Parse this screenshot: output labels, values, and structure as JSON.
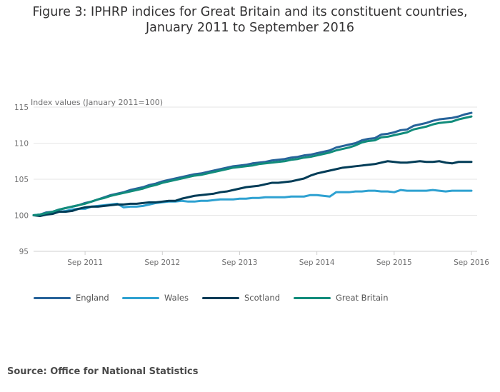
{
  "title_line1": "Figure 3: IPHRP indices for Great Britain and its constituent countries,",
  "title_line2": "January 2011 to September 2016",
  "source": "Source: Office for National Statistics",
  "chart_data": {
    "type": "line",
    "ylabel": "Index values (January 2011=100)",
    "ylim": [
      95,
      115
    ],
    "yticks": [
      95,
      100,
      105,
      110,
      115
    ],
    "xlim": [
      "2011-01",
      "2016-09"
    ],
    "xticks": [
      "Sep 2011",
      "Sep 2012",
      "Sep 2013",
      "Sep 2014",
      "Sep 2015",
      "Sep 2016"
    ],
    "grid": true,
    "legend_position": "bottom",
    "x": [
      "2011-01",
      "2011-02",
      "2011-03",
      "2011-04",
      "2011-05",
      "2011-06",
      "2011-07",
      "2011-08",
      "2011-09",
      "2011-10",
      "2011-11",
      "2011-12",
      "2012-01",
      "2012-02",
      "2012-03",
      "2012-04",
      "2012-05",
      "2012-06",
      "2012-07",
      "2012-08",
      "2012-09",
      "2012-10",
      "2012-11",
      "2012-12",
      "2013-01",
      "2013-02",
      "2013-03",
      "2013-04",
      "2013-05",
      "2013-06",
      "2013-07",
      "2013-08",
      "2013-09",
      "2013-10",
      "2013-11",
      "2013-12",
      "2014-01",
      "2014-02",
      "2014-03",
      "2014-04",
      "2014-05",
      "2014-06",
      "2014-07",
      "2014-08",
      "2014-09",
      "2014-10",
      "2014-11",
      "2014-12",
      "2015-01",
      "2015-02",
      "2015-03",
      "2015-04",
      "2015-05",
      "2015-06",
      "2015-07",
      "2015-08",
      "2015-09",
      "2015-10",
      "2015-11",
      "2015-12",
      "2016-01",
      "2016-02",
      "2016-03",
      "2016-04",
      "2016-05",
      "2016-06",
      "2016-07",
      "2016-08",
      "2016-09"
    ],
    "series": [
      {
        "name": "England",
        "color": "#27639a",
        "values": [
          100,
          100.1,
          100.4,
          100.5,
          100.8,
          101,
          101.2,
          101.4,
          101.7,
          101.9,
          102.2,
          102.5,
          102.8,
          103,
          103.2,
          103.5,
          103.7,
          103.9,
          104.2,
          104.4,
          104.7,
          104.9,
          105.1,
          105.3,
          105.5,
          105.7,
          105.8,
          106,
          106.2,
          106.4,
          106.6,
          106.8,
          106.9,
          107,
          107.2,
          107.3,
          107.4,
          107.6,
          107.7,
          107.8,
          108,
          108.1,
          108.3,
          108.4,
          108.6,
          108.8,
          109,
          109.4,
          109.6,
          109.8,
          110,
          110.4,
          110.6,
          110.7,
          111.2,
          111.3,
          111.5,
          111.8,
          111.9,
          112.4,
          112.6,
          112.8,
          113.1,
          113.3,
          113.4,
          113.5,
          113.7,
          114,
          114.2
        ]
      },
      {
        "name": "Wales",
        "color": "#2ea1d1",
        "values": [
          100,
          100.1,
          100.2,
          100.4,
          100.5,
          100.6,
          100.8,
          100.9,
          100.9,
          101.2,
          101.3,
          101.4,
          101.5,
          101.6,
          101.1,
          101.2,
          101.2,
          101.3,
          101.5,
          101.7,
          101.8,
          101.9,
          101.9,
          102,
          101.9,
          101.9,
          102,
          102,
          102.1,
          102.2,
          102.2,
          102.2,
          102.3,
          102.3,
          102.4,
          102.4,
          102.5,
          102.5,
          102.5,
          102.5,
          102.6,
          102.6,
          102.6,
          102.8,
          102.8,
          102.7,
          102.6,
          103.2,
          103.2,
          103.2,
          103.3,
          103.3,
          103.4,
          103.4,
          103.3,
          103.3,
          103.2,
          103.5,
          103.4,
          103.4,
          103.4,
          103.4,
          103.5,
          103.4,
          103.3,
          103.4,
          103.4,
          103.4,
          103.4
        ]
      },
      {
        "name": "Scotland",
        "color": "#003c57",
        "values": [
          100,
          99.9,
          100.1,
          100.2,
          100.5,
          100.5,
          100.6,
          100.9,
          101.1,
          101.2,
          101.2,
          101.3,
          101.4,
          101.5,
          101.5,
          101.6,
          101.6,
          101.7,
          101.8,
          101.8,
          101.9,
          102,
          102,
          102.3,
          102.5,
          102.7,
          102.8,
          102.9,
          103,
          103.2,
          103.3,
          103.5,
          103.7,
          103.9,
          104,
          104.1,
          104.3,
          104.5,
          104.5,
          104.6,
          104.7,
          104.9,
          105.1,
          105.5,
          105.8,
          106,
          106.2,
          106.4,
          106.6,
          106.7,
          106.8,
          106.9,
          107,
          107.1,
          107.3,
          107.5,
          107.4,
          107.3,
          107.3,
          107.4,
          107.5,
          107.4,
          107.4,
          107.5,
          107.3,
          107.2,
          107.4,
          107.4,
          107.4
        ]
      },
      {
        "name": "Great Britain",
        "color": "#118c7b",
        "values": [
          100,
          100.1,
          100.3,
          100.5,
          100.8,
          101,
          101.2,
          101.4,
          101.6,
          101.9,
          102.2,
          102.4,
          102.7,
          102.9,
          103.1,
          103.3,
          103.5,
          103.7,
          104,
          104.2,
          104.5,
          104.7,
          104.9,
          105.1,
          105.3,
          105.5,
          105.6,
          105.8,
          106,
          106.2,
          106.4,
          106.6,
          106.7,
          106.8,
          106.9,
          107.1,
          107.2,
          107.3,
          107.4,
          107.5,
          107.7,
          107.8,
          108,
          108.1,
          108.3,
          108.5,
          108.7,
          109,
          109.2,
          109.4,
          109.7,
          110.1,
          110.3,
          110.4,
          110.8,
          110.9,
          111.1,
          111.3,
          111.5,
          111.9,
          112.1,
          112.3,
          112.6,
          112.8,
          112.9,
          113,
          113.3,
          113.5,
          113.7
        ]
      }
    ]
  }
}
